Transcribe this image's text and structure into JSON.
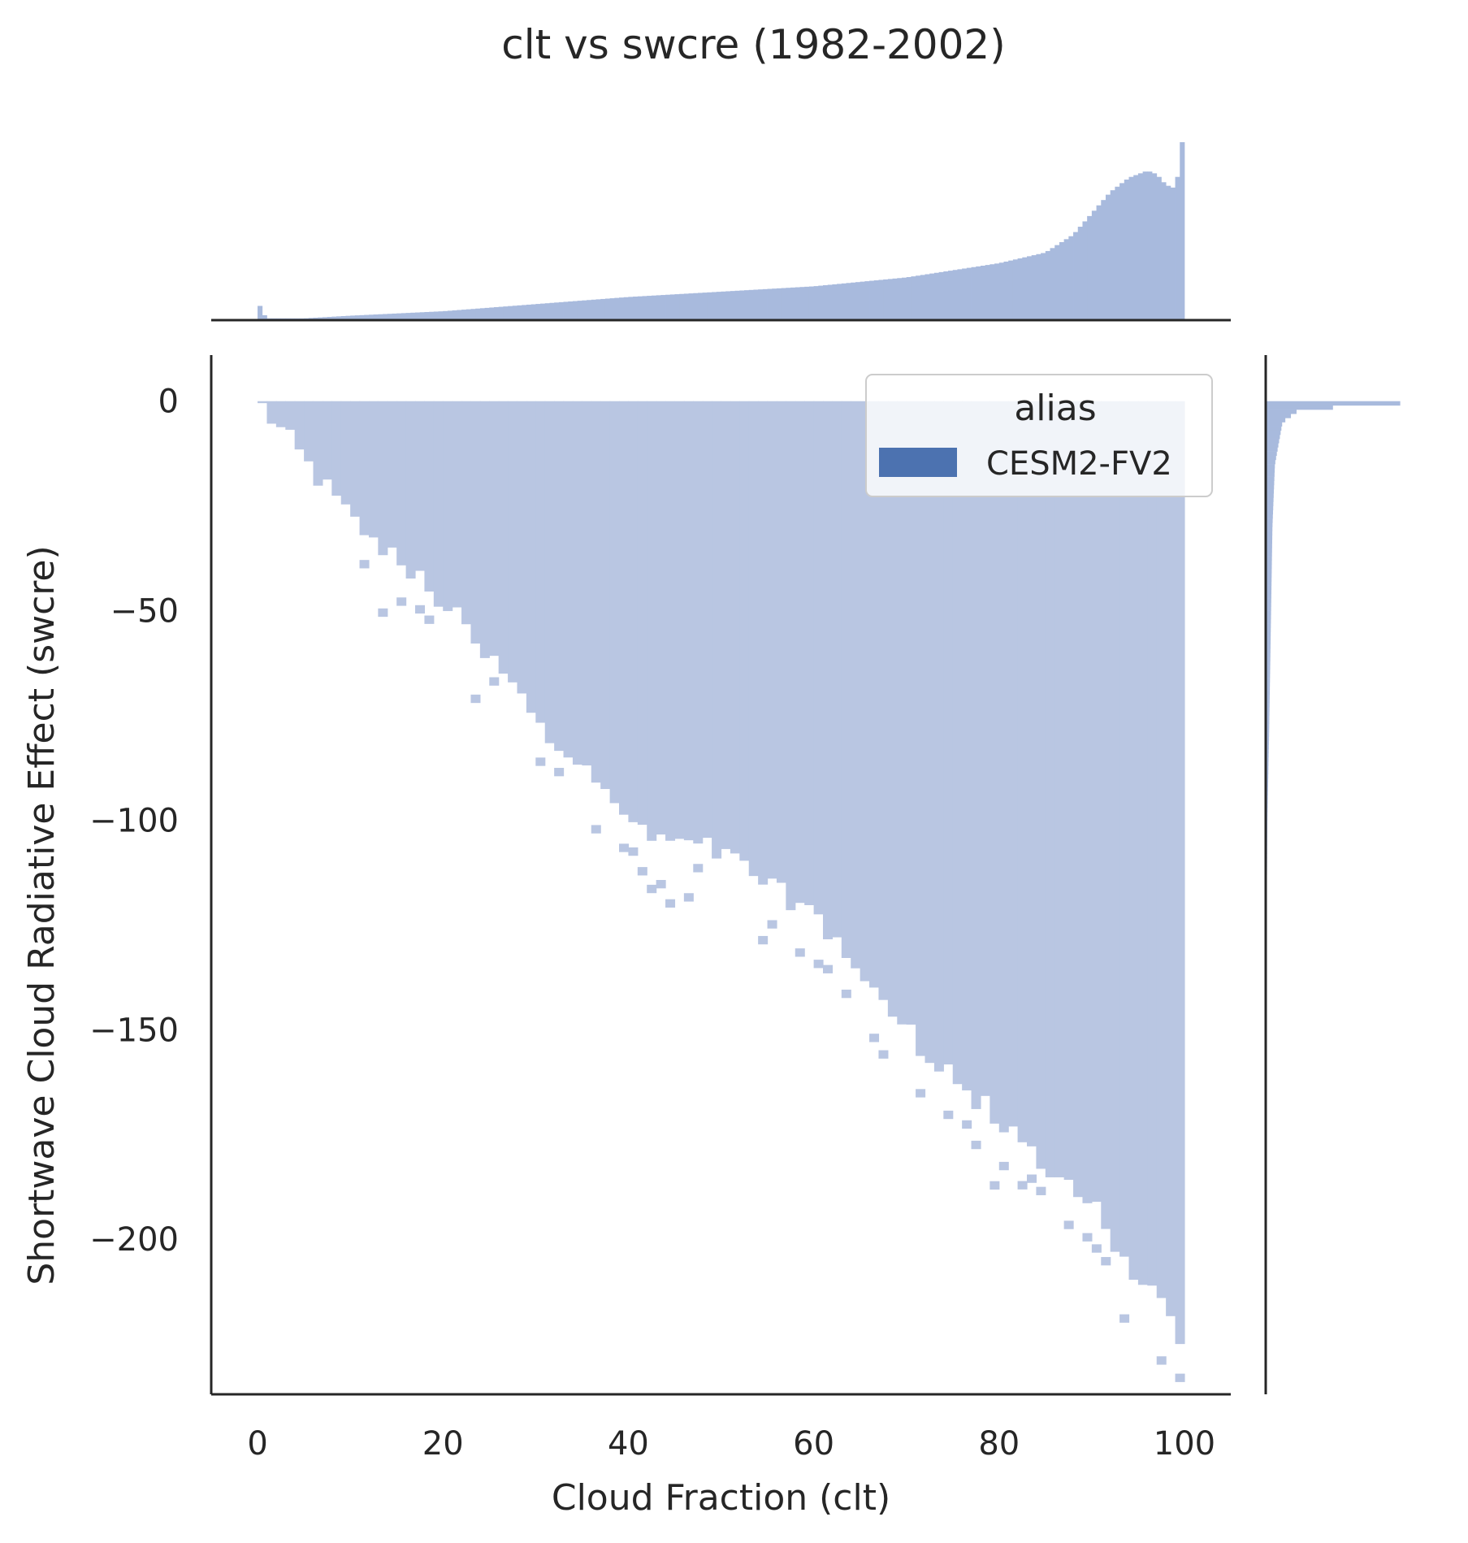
{
  "chart_data": {
    "type": "heatmap",
    "title": "clt vs swcre (1982-2002)",
    "xlabel": "Cloud Fraction (clt)",
    "ylabel": "Shortwave Cloud Radiative Effect (swcre)",
    "xlim": [
      -5,
      105
    ],
    "ylim": [
      -237,
      11
    ],
    "x_ticks": [
      0,
      20,
      40,
      60,
      80,
      100
    ],
    "x_tick_labels": [
      "0",
      "20",
      "40",
      "60",
      "80",
      "100"
    ],
    "y_ticks": [
      0,
      -50,
      -100,
      -150,
      -200
    ],
    "y_tick_labels": [
      "0",
      "−50",
      "−100",
      "−150",
      "−200"
    ],
    "grid": false,
    "bivariate": {
      "x_bin_width": 1,
      "y_bin_width": 2,
      "swcre_lower_edge_points": [
        [
          0,
          0
        ],
        [
          10,
          -28
        ],
        [
          20,
          -48
        ],
        [
          30,
          -75
        ],
        [
          40,
          -100
        ],
        [
          50,
          -108
        ],
        [
          60,
          -122
        ],
        [
          70,
          -150
        ],
        [
          80,
          -172
        ],
        [
          90,
          -192
        ],
        [
          100,
          -225
        ]
      ]
    },
    "marginal_x": {
      "x_edges": [
        0,
        100
      ],
      "relative_density": [
        [
          0,
          0.08
        ],
        [
          1,
          0.01
        ],
        [
          5,
          0.01
        ],
        [
          10,
          0.025
        ],
        [
          20,
          0.05
        ],
        [
          30,
          0.09
        ],
        [
          40,
          0.13
        ],
        [
          50,
          0.16
        ],
        [
          60,
          0.19
        ],
        [
          70,
          0.24
        ],
        [
          80,
          0.32
        ],
        [
          85,
          0.38
        ],
        [
          88,
          0.48
        ],
        [
          90,
          0.6
        ],
        [
          92,
          0.72
        ],
        [
          94,
          0.8
        ],
        [
          96,
          0.84
        ],
        [
          97,
          0.82
        ],
        [
          98,
          0.76
        ],
        [
          99,
          0.74
        ],
        [
          100,
          1.0
        ]
      ]
    },
    "marginal_y": {
      "relative_density": [
        [
          0,
          1.0
        ],
        [
          -2,
          0.2
        ],
        [
          -5,
          0.1
        ],
        [
          -15,
          0.055
        ],
        [
          -30,
          0.04
        ],
        [
          -50,
          0.032
        ],
        [
          -80,
          0.02
        ],
        [
          -100,
          0.01
        ],
        [
          -130,
          0.004
        ],
        [
          -160,
          0.002
        ],
        [
          -225,
          0.0
        ]
      ]
    },
    "series": [
      {
        "name": "CESM2-FV2",
        "color": "#4c72b0"
      }
    ],
    "legend": {
      "title": "alias",
      "placement": "top-right"
    },
    "colors": {
      "fill": "#b9c6e2",
      "marginal": "#a8badd",
      "legend_patch": "#4c72b0",
      "axis": "#262626"
    }
  }
}
